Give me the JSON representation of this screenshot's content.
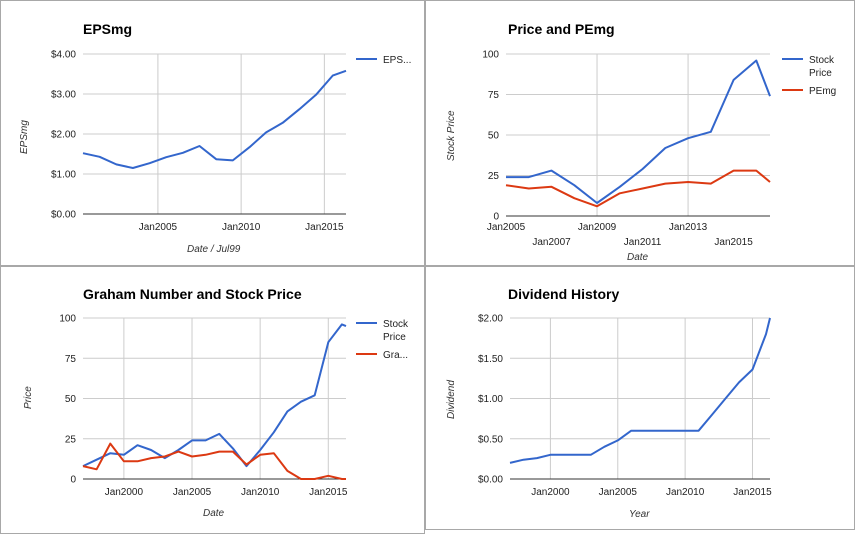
{
  "colors": {
    "blue": "#3366cc",
    "red": "#dc3912",
    "grid": "#cccccc",
    "baseline": "#333333"
  },
  "chart_data": [
    {
      "type": "line",
      "title": "EPSmg",
      "ylabel": "EPSmg",
      "xlabel": "Date / Jul99",
      "xlim": [
        2000.5,
        2016.3
      ],
      "ylim": [
        0,
        4
      ],
      "y_ticks": [
        0,
        1,
        2,
        3,
        4
      ],
      "y_tick_labels": [
        "$0.00",
        "$1.00",
        "$2.00",
        "$3.00",
        "$4.00"
      ],
      "x_ticks": [
        2005,
        2010,
        2015
      ],
      "x_tick_labels": [
        "Jan2005",
        "Jan2010",
        "Jan2015"
      ],
      "x_gridlines": [
        2005,
        2010,
        2015
      ],
      "legend": "right",
      "series": [
        {
          "name": "EPS...",
          "color": "#3366cc",
          "x": [
            2000.5,
            2001.5,
            2002.5,
            2003.5,
            2004.5,
            2005.5,
            2006.5,
            2007.5,
            2008.5,
            2009.5,
            2010.5,
            2011.5,
            2012.5,
            2013.5,
            2014.5,
            2015.5,
            2016.3
          ],
          "y": [
            1.52,
            1.43,
            1.24,
            1.15,
            1.27,
            1.42,
            1.53,
            1.7,
            1.37,
            1.34,
            1.67,
            2.04,
            2.28,
            2.62,
            2.98,
            3.46,
            3.58
          ]
        }
      ]
    },
    {
      "type": "line",
      "title": "Price and PEmg",
      "ylabel": "Stock Price",
      "xlabel": "Date",
      "xlim": [
        2005,
        2016.6
      ],
      "ylim": [
        0,
        100
      ],
      "y_ticks": [
        0,
        25,
        50,
        75,
        100
      ],
      "y_tick_labels": [
        "0",
        "25",
        "50",
        "75",
        "100"
      ],
      "x_ticks": [
        2005,
        2007,
        2009,
        2011,
        2013,
        2015
      ],
      "x_tick_labels": [
        "Jan2005",
        "Jan2007",
        "Jan2009",
        "Jan2011",
        "Jan2013",
        "Jan2015"
      ],
      "x_gridlines": [
        2009,
        2013
      ],
      "legend": "right",
      "series": [
        {
          "name": "Stock Price",
          "color": "#3366cc",
          "x": [
            2005,
            2006,
            2007,
            2008,
            2009,
            2010,
            2011,
            2012,
            2013,
            2014,
            2015,
            2016,
            2016.6
          ],
          "y": [
            24,
            24,
            28,
            19,
            8,
            18,
            29,
            42,
            48,
            52,
            84,
            96,
            74
          ]
        },
        {
          "name": "PEmg",
          "color": "#dc3912",
          "x": [
            2005,
            2006,
            2007,
            2008,
            2009,
            2010,
            2011,
            2012,
            2013,
            2014,
            2015,
            2016,
            2016.6
          ],
          "y": [
            19,
            17,
            18,
            11,
            6,
            14,
            17,
            20,
            21,
            20,
            28,
            28,
            21
          ]
        }
      ]
    },
    {
      "type": "line",
      "title": "Graham Number and Stock Price",
      "ylabel": "Price",
      "xlabel": "Date",
      "xlim": [
        1997,
        2016.3
      ],
      "ylim": [
        0,
        100
      ],
      "y_ticks": [
        0,
        25,
        50,
        75,
        100
      ],
      "y_tick_labels": [
        "0",
        "25",
        "50",
        "75",
        "100"
      ],
      "x_ticks": [
        2000,
        2005,
        2010,
        2015
      ],
      "x_tick_labels": [
        "Jan2000",
        "Jan2005",
        "Jan2010",
        "Jan2015"
      ],
      "x_gridlines": [
        2000,
        2005,
        2010,
        2015
      ],
      "legend": "right",
      "series": [
        {
          "name": "Stock Price",
          "color": "#3366cc",
          "x": [
            1997,
            1998,
            1999,
            2000,
            2001,
            2002,
            2003,
            2004,
            2005,
            2006,
            2007,
            2008,
            2009,
            2010,
            2011,
            2012,
            2013,
            2014,
            2015,
            2016,
            2016.3
          ],
          "y": [
            8,
            12,
            16,
            15,
            21,
            18,
            13,
            18,
            24,
            24,
            28,
            19,
            8,
            18,
            29,
            42,
            48,
            52,
            85,
            96,
            95
          ]
        },
        {
          "name": "Gra...",
          "color": "#dc3912",
          "x": [
            1997,
            1998,
            1999,
            2000,
            2001,
            2002,
            2003,
            2004,
            2005,
            2006,
            2007,
            2008,
            2009,
            2010,
            2011,
            2012,
            2013,
            2014,
            2015,
            2016,
            2016.3
          ],
          "y": [
            8,
            6,
            22,
            11,
            11,
            13,
            14,
            17,
            14,
            15,
            17,
            17,
            9,
            15,
            16,
            5,
            0,
            0,
            2,
            0,
            0
          ]
        }
      ]
    },
    {
      "type": "line",
      "title": "Dividend History",
      "ylabel": "Dividend",
      "xlabel": "Year",
      "xlim": [
        1997,
        2016.3
      ],
      "ylim": [
        0,
        2
      ],
      "y_ticks": [
        0,
        0.5,
        1,
        1.5,
        2
      ],
      "y_tick_labels": [
        "$0.00",
        "$0.50",
        "$1.00",
        "$1.50",
        "$2.00"
      ],
      "x_ticks": [
        2000,
        2005,
        2010,
        2015
      ],
      "x_tick_labels": [
        "Jan2000",
        "Jan2005",
        "Jan2010",
        "Jan2015"
      ],
      "x_gridlines": [
        2000,
        2005,
        2010,
        2015
      ],
      "legend": "none",
      "series": [
        {
          "name": "",
          "color": "#3366cc",
          "x": [
            1997,
            1998,
            1999,
            2000,
            2001,
            2002,
            2003,
            2004,
            2005,
            2006,
            2007,
            2008,
            2009,
            2010,
            2011,
            2012,
            2013,
            2014,
            2015,
            2016,
            2016.3
          ],
          "y": [
            0.2,
            0.24,
            0.26,
            0.3,
            0.3,
            0.3,
            0.3,
            0.4,
            0.48,
            0.6,
            0.6,
            0.6,
            0.6,
            0.6,
            0.6,
            0.8,
            1.0,
            1.2,
            1.36,
            1.8,
            2.0
          ]
        }
      ]
    }
  ]
}
